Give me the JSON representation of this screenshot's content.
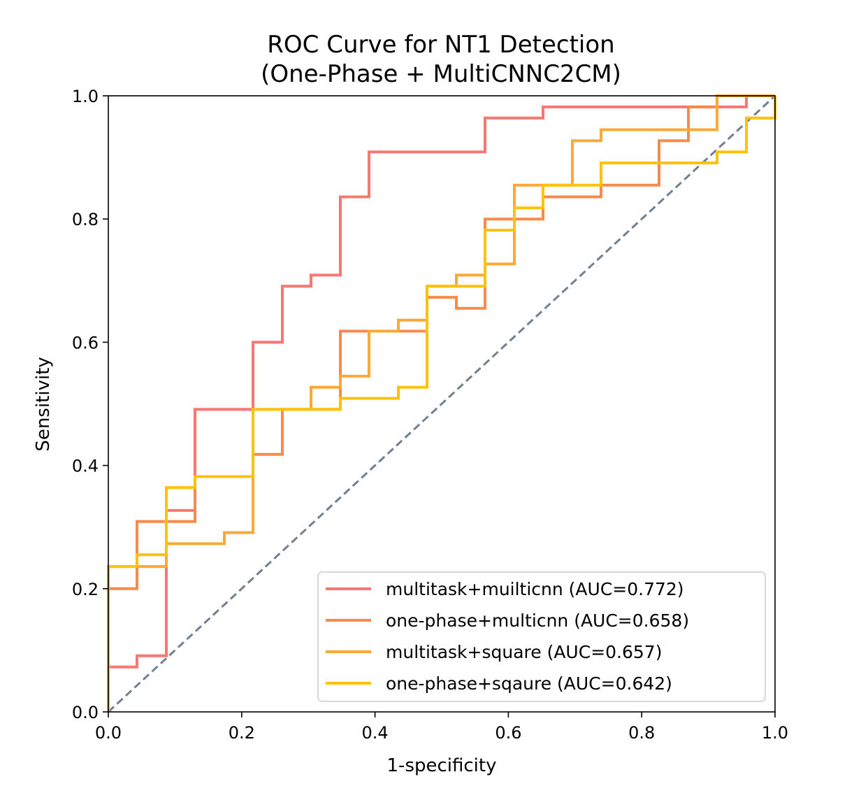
{
  "chart_data": {
    "type": "line",
    "title": "ROC Curve for NT1 Detection",
    "subtitle": "(One-Phase + MultiCNNC2CM)",
    "xlabel": "1-specificity",
    "ylabel": "Sensitivity",
    "xlim": [
      0.0,
      1.0
    ],
    "ylim": [
      0.0,
      1.0
    ],
    "xticks": [
      "0.0",
      "0.2",
      "0.4",
      "0.6",
      "0.8",
      "1.0"
    ],
    "yticks": [
      "0.0",
      "0.2",
      "0.4",
      "0.6",
      "0.8",
      "1.0"
    ],
    "grid": false,
    "legend_position": "lower-right",
    "reference_line": {
      "x": [
        0,
        1
      ],
      "y": [
        0,
        1
      ],
      "style": "dashed",
      "color": "#708090"
    },
    "series": [
      {
        "name": "multitask+muilticnn (AUC=0.772)",
        "color": "#f87871",
        "x": [
          0,
          0,
          0.043,
          0.043,
          0.087,
          0.087,
          0.13,
          0.13,
          0.217,
          0.217,
          0.261,
          0.261,
          0.304,
          0.304,
          0.348,
          0.348,
          0.391,
          0.391,
          0.565,
          0.565,
          0.652,
          0.652,
          0.957,
          0.957,
          1.0
        ],
        "y": [
          0,
          0.073,
          0.073,
          0.091,
          0.091,
          0.327,
          0.327,
          0.491,
          0.491,
          0.6,
          0.6,
          0.691,
          0.691,
          0.709,
          0.709,
          0.836,
          0.836,
          0.909,
          0.909,
          0.964,
          0.964,
          0.982,
          0.982,
          1.0,
          1.0
        ]
      },
      {
        "name": "one-phase+multicnn (AUC=0.658)",
        "color": "#fa8a49",
        "x": [
          0,
          0,
          0.043,
          0.043,
          0.13,
          0.13,
          0.217,
          0.217,
          0.261,
          0.261,
          0.348,
          0.348,
          0.391,
          0.391,
          0.478,
          0.478,
          0.522,
          0.522,
          0.565,
          0.565,
          0.609,
          0.609,
          0.652,
          0.652,
          0.739,
          0.739,
          0.826,
          0.826,
          0.87,
          0.87,
          0.913,
          0.913,
          1.0
        ],
        "y": [
          0,
          0.2,
          0.2,
          0.309,
          0.309,
          0.382,
          0.382,
          0.418,
          0.418,
          0.491,
          0.491,
          0.618,
          0.618,
          0.618,
          0.618,
          0.673,
          0.673,
          0.655,
          0.655,
          0.8,
          0.8,
          0.8,
          0.8,
          0.836,
          0.836,
          0.855,
          0.855,
          0.927,
          0.927,
          0.982,
          0.982,
          1.0,
          1.0
        ]
      },
      {
        "name": "multitask+square (AUC=0.657)",
        "color": "#ffa833",
        "x": [
          0,
          0,
          0.087,
          0.087,
          0.174,
          0.174,
          0.217,
          0.217,
          0.304,
          0.304,
          0.348,
          0.348,
          0.391,
          0.391,
          0.435,
          0.435,
          0.478,
          0.478,
          0.522,
          0.522,
          0.565,
          0.565,
          0.609,
          0.609,
          0.696,
          0.696,
          0.739,
          0.739,
          0.87,
          0.87,
          0.913,
          0.913,
          1.0
        ],
        "y": [
          0,
          0.236,
          0.236,
          0.273,
          0.273,
          0.291,
          0.291,
          0.491,
          0.491,
          0.527,
          0.527,
          0.545,
          0.545,
          0.618,
          0.618,
          0.636,
          0.636,
          0.691,
          0.691,
          0.709,
          0.709,
          0.727,
          0.727,
          0.855,
          0.855,
          0.927,
          0.927,
          0.945,
          0.945,
          0.945,
          0.945,
          1.0,
          1.0
        ]
      },
      {
        "name": "one-phase+sqaure (AUC=0.642)",
        "color": "#ffc20a",
        "x": [
          0,
          0,
          0.043,
          0.043,
          0.087,
          0.087,
          0.13,
          0.13,
          0.217,
          0.217,
          0.348,
          0.348,
          0.435,
          0.435,
          0.478,
          0.478,
          0.565,
          0.565,
          0.609,
          0.609,
          0.652,
          0.652,
          0.739,
          0.739,
          0.913,
          0.913,
          0.957,
          0.957,
          1.0,
          1.0
        ],
        "y": [
          0,
          0.236,
          0.236,
          0.255,
          0.255,
          0.364,
          0.364,
          0.382,
          0.382,
          0.491,
          0.491,
          0.509,
          0.509,
          0.527,
          0.527,
          0.691,
          0.691,
          0.782,
          0.782,
          0.818,
          0.818,
          0.855,
          0.855,
          0.891,
          0.891,
          0.909,
          0.909,
          0.964,
          0.964,
          1.0
        ]
      }
    ]
  }
}
